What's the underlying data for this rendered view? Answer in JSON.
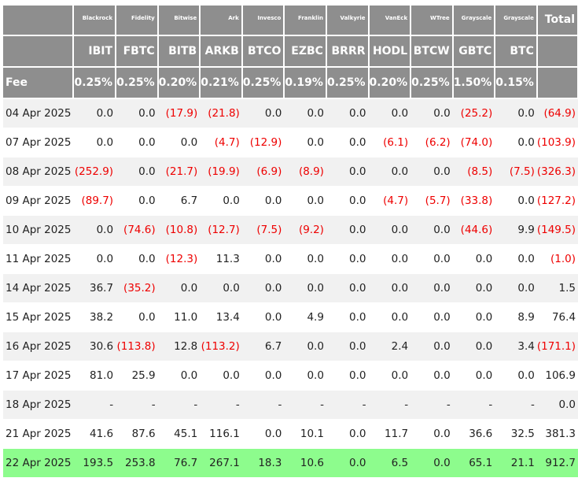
{
  "table": {
    "issuers": [
      "Blackrock",
      "Fidelity",
      "Bitwise",
      "Ark",
      "Invesco",
      "Franklin",
      "Valkyrie",
      "VanEck",
      "WTree",
      "Grayscale",
      "Grayscale"
    ],
    "total_label": "Total",
    "tickers": [
      "IBIT",
      "FBTC",
      "BITB",
      "ARKB",
      "BTCO",
      "EZBC",
      "BRRR",
      "HODL",
      "BTCW",
      "GBTC",
      "BTC"
    ],
    "fee_label": "Fee",
    "fees": [
      "0.25%",
      "0.25%",
      "0.20%",
      "0.21%",
      "0.25%",
      "0.19%",
      "0.25%",
      "0.20%",
      "0.25%",
      "1.50%",
      "0.15%"
    ],
    "rows": [
      {
        "date": "04 Apr 2025",
        "values": [
          "0.0",
          "0.0",
          "(17.9)",
          "(21.8)",
          "0.0",
          "0.0",
          "0.0",
          "0.0",
          "0.0",
          "(25.2)",
          "0.0"
        ],
        "total": "(64.9)"
      },
      {
        "date": "07 Apr 2025",
        "values": [
          "0.0",
          "0.0",
          "0.0",
          "(4.7)",
          "(12.9)",
          "0.0",
          "0.0",
          "(6.1)",
          "(6.2)",
          "(74.0)",
          "0.0"
        ],
        "total": "(103.9)"
      },
      {
        "date": "08 Apr 2025",
        "values": [
          "(252.9)",
          "0.0",
          "(21.7)",
          "(19.9)",
          "(6.9)",
          "(8.9)",
          "0.0",
          "0.0",
          "0.0",
          "(8.5)",
          "(7.5)"
        ],
        "total": "(326.3)"
      },
      {
        "date": "09 Apr 2025",
        "values": [
          "(89.7)",
          "0.0",
          "6.7",
          "0.0",
          "0.0",
          "0.0",
          "0.0",
          "(4.7)",
          "(5.7)",
          "(33.8)",
          "0.0"
        ],
        "total": "(127.2)"
      },
      {
        "date": "10 Apr 2025",
        "values": [
          "0.0",
          "(74.6)",
          "(10.8)",
          "(12.7)",
          "(7.5)",
          "(9.2)",
          "0.0",
          "0.0",
          "0.0",
          "(44.6)",
          "9.9"
        ],
        "total": "(149.5)"
      },
      {
        "date": "11 Apr 2025",
        "values": [
          "0.0",
          "0.0",
          "(12.3)",
          "11.3",
          "0.0",
          "0.0",
          "0.0",
          "0.0",
          "0.0",
          "0.0",
          "0.0"
        ],
        "total": "(1.0)"
      },
      {
        "date": "14 Apr 2025",
        "values": [
          "36.7",
          "(35.2)",
          "0.0",
          "0.0",
          "0.0",
          "0.0",
          "0.0",
          "0.0",
          "0.0",
          "0.0",
          "0.0"
        ],
        "total": "1.5"
      },
      {
        "date": "15 Apr 2025",
        "values": [
          "38.2",
          "0.0",
          "11.0",
          "13.4",
          "0.0",
          "4.9",
          "0.0",
          "0.0",
          "0.0",
          "0.0",
          "8.9"
        ],
        "total": "76.4"
      },
      {
        "date": "16 Apr 2025",
        "values": [
          "30.6",
          "(113.8)",
          "12.8",
          "(113.2)",
          "6.7",
          "0.0",
          "0.0",
          "2.4",
          "0.0",
          "0.0",
          "3.4"
        ],
        "total": "(171.1)"
      },
      {
        "date": "17 Apr 2025",
        "values": [
          "81.0",
          "25.9",
          "0.0",
          "0.0",
          "0.0",
          "0.0",
          "0.0",
          "0.0",
          "0.0",
          "0.0",
          "0.0"
        ],
        "total": "106.9"
      },
      {
        "date": "18 Apr 2025",
        "values": [
          "-",
          "-",
          "-",
          "-",
          "-",
          "-",
          "-",
          "-",
          "-",
          "-",
          "-"
        ],
        "total": "0.0"
      },
      {
        "date": "21 Apr 2025",
        "values": [
          "41.6",
          "87.6",
          "45.1",
          "116.1",
          "0.0",
          "10.1",
          "0.0",
          "11.7",
          "0.0",
          "36.6",
          "32.5"
        ],
        "total": "381.3"
      },
      {
        "date": "22 Apr 2025",
        "values": [
          "193.5",
          "253.8",
          "76.7",
          "267.1",
          "18.3",
          "10.6",
          "0.0",
          "6.5",
          "0.0",
          "65.1",
          "21.1"
        ],
        "total": "912.7",
        "highlight": true
      }
    ]
  },
  "colors": {
    "header_bg": "#8e8e8e",
    "header_text": "#ffffff",
    "negative": "#ee0000",
    "row_stripe": "#f1f1f1",
    "highlight": "#8dfc8d"
  }
}
